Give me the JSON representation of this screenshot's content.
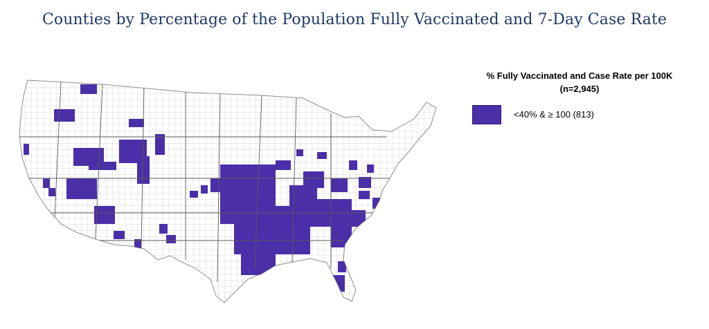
{
  "title": "Counties by Percentage of the Population Fully Vaccinated and 7-Day Case Rate",
  "legend": {
    "title_line1": "% Fully Vaccinated and Case Rate per 100K",
    "title_line2": "(n=2,945)",
    "entries": [
      {
        "label": "<40% & ≥ 100 (813)",
        "color": "#4a2fa8"
      }
    ]
  },
  "map": {
    "region": "United States counties",
    "highlight_color": "#4a2fa8",
    "border_color": "#9a9a9a",
    "fill_color": "#ffffff"
  }
}
